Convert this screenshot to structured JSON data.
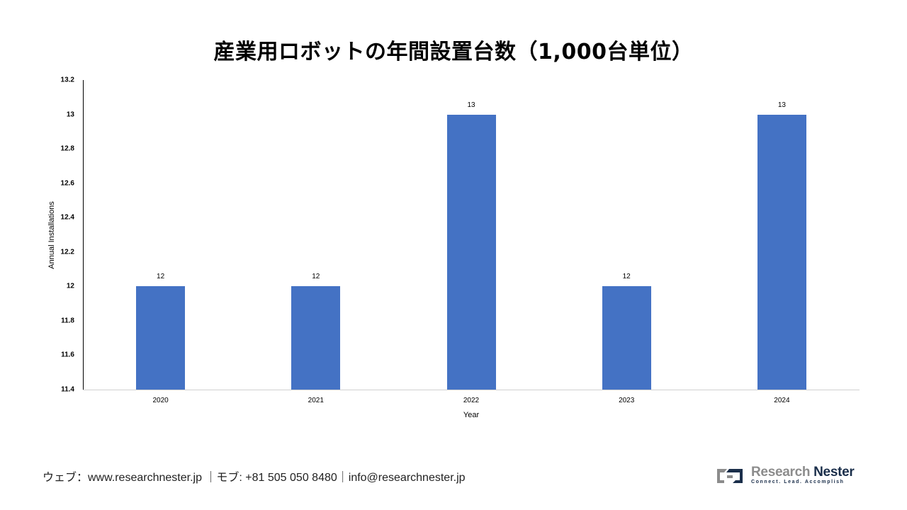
{
  "title": "産業用ロボットの年間設置台数（1,000台単位）",
  "chart_data": {
    "type": "bar",
    "title": "産業用ロボットの年間設置台数（1,000台単位）",
    "categories": [
      "2020",
      "2021",
      "2022",
      "2023",
      "2024"
    ],
    "values": [
      12,
      12,
      13,
      12,
      13
    ],
    "data_labels": [
      "12",
      "12",
      "13",
      "12",
      "13"
    ],
    "xlabel": "Year",
    "ylabel": "Annual Installations",
    "ylim": [
      11.4,
      13.2
    ],
    "yticks": [
      "13.2",
      "13",
      "12.8",
      "12.6",
      "12.4",
      "12.2",
      "12",
      "11.8",
      "11.6",
      "11.4"
    ],
    "grid": false,
    "legend": "none",
    "bar_color": "#4472c4"
  },
  "footer": {
    "contact": "ウェブ：www.researchnester.jp ｜モブ: +81 505 050 8480｜info@researchnester.jp"
  },
  "logo": {
    "name_part1": "Research",
    "name_part2": "Nester",
    "tagline": "Connect. Lead. Accomplish"
  }
}
